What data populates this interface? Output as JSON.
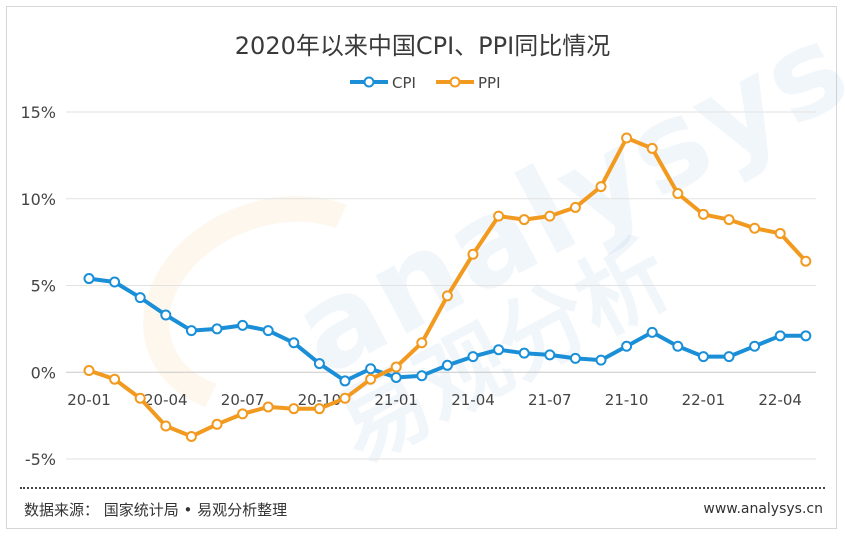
{
  "title": "2020年以来中国CPI、PPI同比情况",
  "source": "数据来源： 国家统计局 • 易观分析整理",
  "site": "www.analysys.cn",
  "watermark": {
    "latin": "analysys",
    "chinese": "易观分析"
  },
  "chart_data": {
    "type": "line",
    "title": "2020年以来中国CPI、PPI同比情况",
    "xlabel": "",
    "ylabel": "",
    "ylim": [
      -5,
      15
    ],
    "yticks": [
      "15%",
      "10%",
      "5%",
      "0%",
      "-5%"
    ],
    "ytick_values": [
      15,
      10,
      5,
      0,
      -5
    ],
    "xtick_labels": [
      "20-01",
      "20-04",
      "20-07",
      "20-10",
      "21-01",
      "21-04",
      "21-07",
      "21-10",
      "22-01",
      "22-04"
    ],
    "xtick_index": [
      0,
      3,
      6,
      9,
      12,
      15,
      18,
      21,
      24,
      27
    ],
    "grid": true,
    "legend": "top-center",
    "x": [
      "20-01",
      "20-02",
      "20-03",
      "20-04",
      "20-05",
      "20-06",
      "20-07",
      "20-08",
      "20-09",
      "20-10",
      "20-11",
      "20-12",
      "21-01",
      "21-02",
      "21-03",
      "21-04",
      "21-05",
      "21-06",
      "21-07",
      "21-08",
      "21-09",
      "21-10",
      "21-11",
      "21-12",
      "22-01",
      "22-02",
      "22-03",
      "22-04",
      "22-05"
    ],
    "series": [
      {
        "name": "CPI",
        "color": "#1a8fd8",
        "values": [
          5.4,
          5.2,
          4.3,
          3.3,
          2.4,
          2.5,
          2.7,
          2.4,
          1.7,
          0.5,
          -0.5,
          0.2,
          -0.3,
          -0.2,
          0.4,
          0.9,
          1.3,
          1.1,
          1.0,
          0.8,
          0.7,
          1.5,
          2.3,
          1.5,
          0.9,
          0.9,
          1.5,
          2.1,
          2.1
        ]
      },
      {
        "name": "PPI",
        "color": "#f29a1f",
        "values": [
          0.1,
          -0.4,
          -1.5,
          -3.1,
          -3.7,
          -3.0,
          -2.4,
          -2.0,
          -2.1,
          -2.1,
          -1.5,
          -0.4,
          0.3,
          1.7,
          4.4,
          6.8,
          9.0,
          8.8,
          9.0,
          9.5,
          10.7,
          13.5,
          12.9,
          10.3,
          9.1,
          8.8,
          8.3,
          8.0,
          6.4
        ]
      }
    ]
  }
}
